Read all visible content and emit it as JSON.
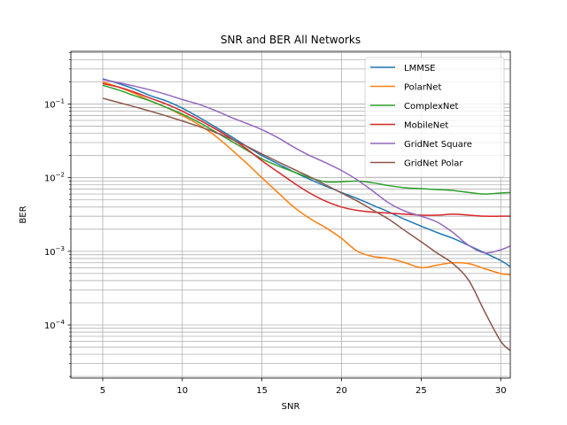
{
  "chart_data": {
    "type": "line",
    "title": "SNR and BER All Networks",
    "xlabel": "SNR",
    "ylabel": "BER",
    "xlim": [
      3.0,
      30.6
    ],
    "ylim": [
      1.9e-05,
      0.52
    ],
    "yscale": "log",
    "grid": true,
    "legend_position": "top-right",
    "x_ticks": [
      5,
      10,
      15,
      20,
      25,
      30
    ],
    "x_tick_labels": [
      "5",
      "10",
      "15",
      "20",
      "25",
      "30"
    ],
    "y_ticks": [
      0.0001,
      0.001,
      0.01,
      0.1
    ],
    "y_tick_labels": [
      {
        "base": "10",
        "exp": "−4"
      },
      {
        "base": "10",
        "exp": "−3"
      },
      {
        "base": "10",
        "exp": "−2"
      },
      {
        "base": "10",
        "exp": "−1"
      }
    ],
    "x": [
      5,
      6,
      7,
      8,
      9,
      10,
      11,
      12,
      13,
      14,
      15,
      16,
      17,
      18,
      19,
      20,
      21,
      22,
      23,
      24,
      25,
      26,
      27,
      28,
      29,
      30,
      30.6
    ],
    "series": [
      {
        "name": "LMMSE",
        "color": "#1f77b4",
        "values": [
          0.22,
          0.19,
          0.16,
          0.13,
          0.11,
          0.088,
          0.067,
          0.05,
          0.037,
          0.027,
          0.02,
          0.0155,
          0.012,
          0.0095,
          0.0077,
          0.0063,
          0.0052,
          0.0042,
          0.0034,
          0.0027,
          0.0022,
          0.0018,
          0.0015,
          0.0012,
          0.00095,
          0.00075,
          0.00062
        ]
      },
      {
        "name": "PolarNet",
        "color": "#ff7f0e",
        "values": [
          0.2,
          0.17,
          0.14,
          0.11,
          0.09,
          0.07,
          0.053,
          0.038,
          0.025,
          0.016,
          0.01,
          0.0063,
          0.004,
          0.0028,
          0.0021,
          0.0015,
          0.001,
          0.00085,
          0.0008,
          0.0007,
          0.0006,
          0.00065,
          0.0007,
          0.00068,
          0.00058,
          0.0005,
          0.00048
        ]
      },
      {
        "name": "ComplexNet",
        "color": "#2ca02c",
        "values": [
          0.18,
          0.155,
          0.13,
          0.11,
          0.09,
          0.073,
          0.057,
          0.043,
          0.032,
          0.024,
          0.018,
          0.0145,
          0.012,
          0.01,
          0.0088,
          0.0088,
          0.009,
          0.0085,
          0.0078,
          0.0073,
          0.0071,
          0.0069,
          0.0067,
          0.0063,
          0.006,
          0.0062,
          0.0063
        ]
      },
      {
        "name": "MobileNet",
        "color": "#d62728",
        "values": [
          0.19,
          0.17,
          0.145,
          0.12,
          0.1,
          0.08,
          0.062,
          0.047,
          0.035,
          0.025,
          0.017,
          0.012,
          0.0085,
          0.0062,
          0.0048,
          0.004,
          0.0036,
          0.0034,
          0.0033,
          0.0032,
          0.0031,
          0.0031,
          0.0032,
          0.0031,
          0.003,
          0.003,
          0.003
        ]
      },
      {
        "name": "GridNet Square",
        "color": "#9467bd",
        "values": [
          0.215,
          0.195,
          0.175,
          0.155,
          0.135,
          0.115,
          0.1,
          0.083,
          0.067,
          0.055,
          0.045,
          0.035,
          0.026,
          0.02,
          0.016,
          0.0125,
          0.0093,
          0.0065,
          0.0045,
          0.0035,
          0.003,
          0.0025,
          0.0018,
          0.0012,
          0.00095,
          0.00105,
          0.00118
        ]
      },
      {
        "name": "GridNet Polar",
        "color": "#8c564b",
        "values": [
          0.12,
          0.105,
          0.092,
          0.08,
          0.069,
          0.059,
          0.05,
          0.042,
          0.034,
          0.027,
          0.021,
          0.0165,
          0.013,
          0.0103,
          0.008,
          0.0062,
          0.0048,
          0.0036,
          0.0027,
          0.0019,
          0.00135,
          0.00095,
          0.00068,
          0.0004,
          0.00015,
          6e-05,
          4.5e-05
        ]
      }
    ]
  }
}
